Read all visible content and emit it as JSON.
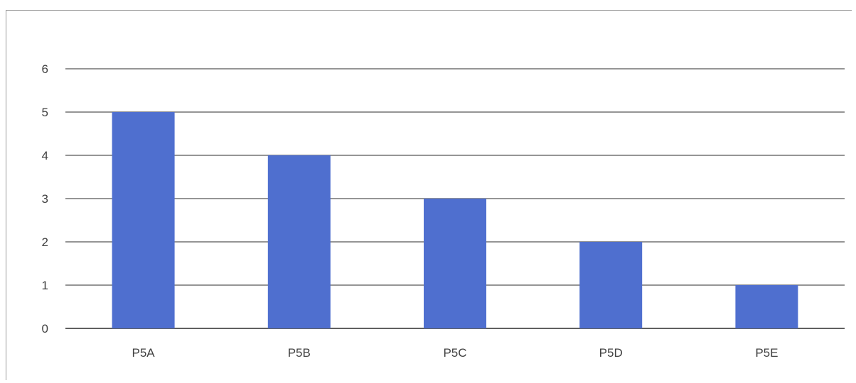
{
  "chart_data": {
    "type": "bar",
    "title": "",
    "xlabel": "",
    "ylabel": "",
    "categories": [
      "P5A",
      "P5B",
      "P5C",
      "P5D",
      "P5E"
    ],
    "values": [
      5,
      4,
      3,
      2,
      1
    ],
    "ylim": [
      0,
      6
    ],
    "yticks": [
      "0",
      "1",
      "2",
      "3",
      "4",
      "5",
      "6"
    ],
    "grid": true,
    "legend": "none",
    "bar_color": "#4f6fcf",
    "gridline_color": "#2b2b2b"
  }
}
